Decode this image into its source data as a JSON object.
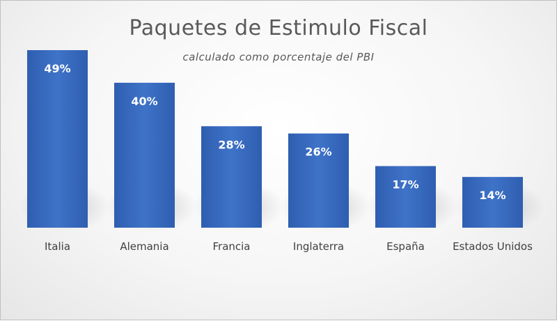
{
  "chart_data": {
    "type": "bar",
    "title": "Paquetes de Estimulo Fiscal",
    "subtitle": "calculado  como  porcentaje  del  PBI",
    "categories": [
      "Italia",
      "Alemania",
      "Francia",
      "Inglaterra",
      "España",
      "Estados Unidos"
    ],
    "values": [
      49,
      40,
      28,
      26,
      17,
      14
    ],
    "data_labels": [
      "49%",
      "40%",
      "28%",
      "26%",
      "17%",
      "14%"
    ],
    "unit": "%",
    "ylim": [
      0,
      49
    ],
    "grid": false,
    "legend": "none",
    "bar_color": "#3a6fc4"
  }
}
